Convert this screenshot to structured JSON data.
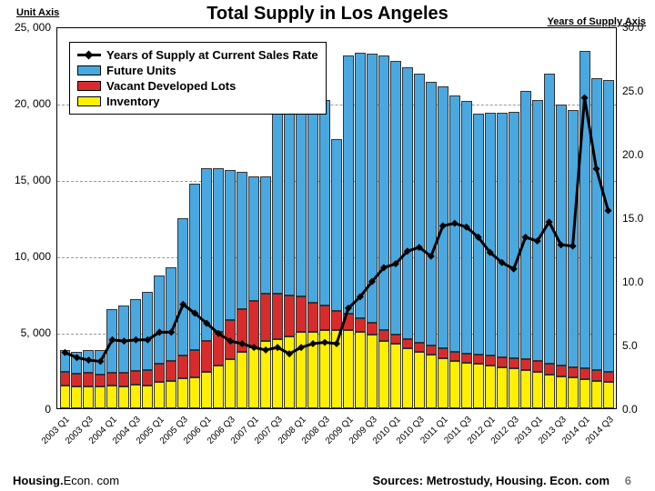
{
  "title": "Total Supply in Los Angeles",
  "left_axis": {
    "label": "Unit Axis",
    "min": 0,
    "max": 25000,
    "ticks": [
      0,
      5000,
      10000,
      15000,
      20000,
      25000
    ],
    "tick_labels": [
      "0",
      "5, 000",
      "10, 000",
      "15, 000",
      "20, 000",
      "25, 000"
    ]
  },
  "right_axis": {
    "label": "Years of Supply Axis",
    "min": 0,
    "max": 30,
    "ticks": [
      0,
      5,
      10,
      15,
      20,
      25,
      30
    ],
    "tick_labels": [
      "0.0",
      "5.0",
      "10.0",
      "15.0",
      "20.0",
      "25.0",
      "30.0"
    ]
  },
  "colors": {
    "future": "#4aa8e0",
    "vacant": "#d82c2c",
    "inventory": "#ffef00",
    "line": "#000000",
    "grid": "#999999",
    "border": "#000000",
    "bg": "#ffffff"
  },
  "legend": [
    {
      "type": "line",
      "label": "Years of Supply at Current Sales Rate"
    },
    {
      "type": "swatch",
      "color": "#4aa8e0",
      "label": "Future Units"
    },
    {
      "type": "swatch",
      "color": "#d82c2c",
      "label": "Vacant Developed Lots"
    },
    {
      "type": "swatch",
      "color": "#ffef00",
      "label": "Inventory"
    }
  ],
  "categories": [
    "2003 Q1",
    "2003 Q2",
    "2003 Q3",
    "2003 Q4",
    "2004 Q1",
    "2004 Q2",
    "2004 Q3",
    "2004 Q4",
    "2005 Q1",
    "2005 Q2",
    "2005 Q3",
    "2005 Q4",
    "2006 Q1",
    "2006 Q2",
    "2006 Q3",
    "2006 Q4",
    "2007 Q1",
    "2007 Q2",
    "2007 Q3",
    "2007 Q4",
    "2008 Q1",
    "2008 Q2",
    "2008 Q3",
    "2008 Q4",
    "2009 Q1",
    "2009 Q2",
    "2009 Q3",
    "2009 Q4",
    "2010 Q1",
    "2010 Q2",
    "2010 Q3",
    "2010 Q4",
    "2011 Q1",
    "2011 Q2",
    "2011 Q3",
    "2011 Q4",
    "2012 Q1",
    "2012 Q2",
    "2012 Q3",
    "2012 Q4",
    "2013 Q1",
    "2013 Q2",
    "2013 Q3",
    "2013 Q4",
    "2014 Q1",
    "2014 Q2",
    "2014 Q3"
  ],
  "x_label_indices": [
    0,
    2,
    4,
    6,
    8,
    10,
    12,
    14,
    16,
    18,
    20,
    22,
    24,
    26,
    28,
    30,
    32,
    34,
    36,
    38,
    40,
    42,
    44,
    46
  ],
  "stacks": {
    "inventory": [
      1500,
      1400,
      1450,
      1400,
      1500,
      1450,
      1550,
      1500,
      1700,
      1800,
      1950,
      2000,
      2400,
      2800,
      3200,
      3700,
      4000,
      4400,
      4500,
      4700,
      5000,
      5000,
      5100,
      5100,
      5100,
      5000,
      4800,
      4400,
      4200,
      3900,
      3700,
      3500,
      3300,
      3100,
      3000,
      2900,
      2800,
      2700,
      2600,
      2500,
      2400,
      2200,
      2100,
      2000,
      1900,
      1800,
      1700
    ],
    "vacant": [
      900,
      850,
      850,
      800,
      800,
      850,
      900,
      1000,
      1200,
      1300,
      1500,
      1800,
      2000,
      2200,
      2600,
      2800,
      3000,
      3100,
      3000,
      2700,
      2300,
      1900,
      1600,
      1300,
      1100,
      900,
      800,
      700,
      650,
      600,
      600,
      600,
      600,
      600,
      600,
      600,
      650,
      650,
      700,
      700,
      700,
      700,
      700,
      700,
      700,
      700,
      700
    ],
    "future": [
      1400,
      1450,
      1500,
      1600,
      4200,
      4400,
      4700,
      5100,
      5800,
      6100,
      9000,
      10900,
      11300,
      10700,
      9800,
      9000,
      8200,
      7700,
      13600,
      14200,
      14200,
      13600,
      13500,
      11200,
      16900,
      17400,
      17600,
      18000,
      17900,
      17800,
      17600,
      17300,
      17200,
      16800,
      16500,
      15800,
      15900,
      16000,
      16100,
      17600,
      17100,
      19000,
      17100,
      16800,
      20800,
      19100,
      19100
    ]
  },
  "line_values": [
    4.4,
    4.0,
    3.8,
    3.7,
    5.4,
    5.3,
    5.4,
    5.4,
    6.0,
    6.0,
    8.2,
    7.5,
    6.7,
    5.9,
    5.3,
    5.1,
    4.8,
    4.6,
    4.8,
    4.3,
    4.8,
    5.1,
    5.2,
    5.1,
    7.9,
    8.8,
    10.0,
    11.1,
    11.4,
    12.4,
    12.7,
    12.0,
    14.4,
    14.6,
    14.3,
    13.5,
    12.3,
    11.5,
    11.0,
    13.5,
    13.2,
    14.7,
    12.9,
    12.8,
    24.5,
    18.9,
    15.6
  ],
  "marker_size": 4,
  "line_width": 3,
  "footer": {
    "left_a": "Housing.",
    "left_b": "Econ. com",
    "right": "Sources: Metrostudy, Housing. Econ. com",
    "page": "6"
  },
  "chart_type": "stacked_bar_with_line",
  "bar_border_width": 0.5
}
